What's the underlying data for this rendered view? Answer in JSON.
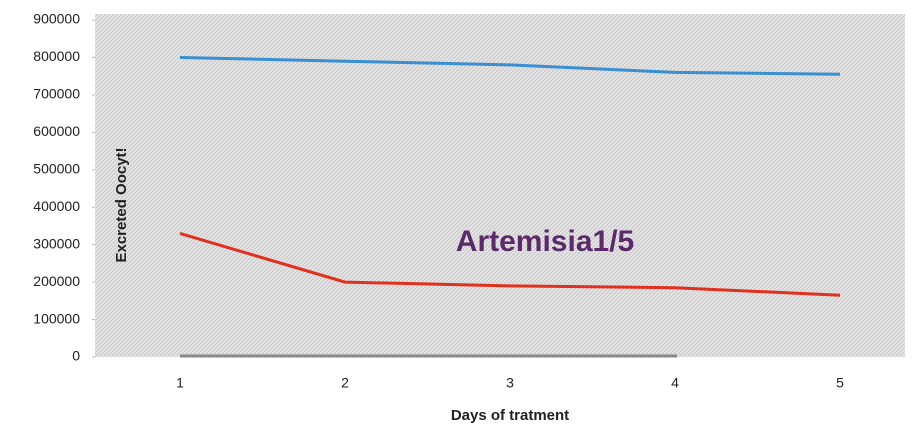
{
  "chart_data": {
    "type": "line",
    "y_label": "Excreted Oocyt!",
    "x_label": "Days of tratment",
    "annotation": "Artemisia1/5",
    "categories": [
      "1",
      "2",
      "3",
      "4",
      "5"
    ],
    "series": [
      {
        "color": "#3a8fd0",
        "values": [
          800000,
          790000,
          780000,
          760000,
          755000
        ]
      },
      {
        "color": "#e0301e",
        "values": [
          330000,
          200000,
          190000,
          185000,
          165000
        ]
      }
    ],
    "ylim": [
      0,
      900000
    ],
    "yticks": [
      0,
      100000,
      200000,
      300000,
      400000,
      500000,
      600000,
      700000,
      800000,
      900000
    ]
  }
}
